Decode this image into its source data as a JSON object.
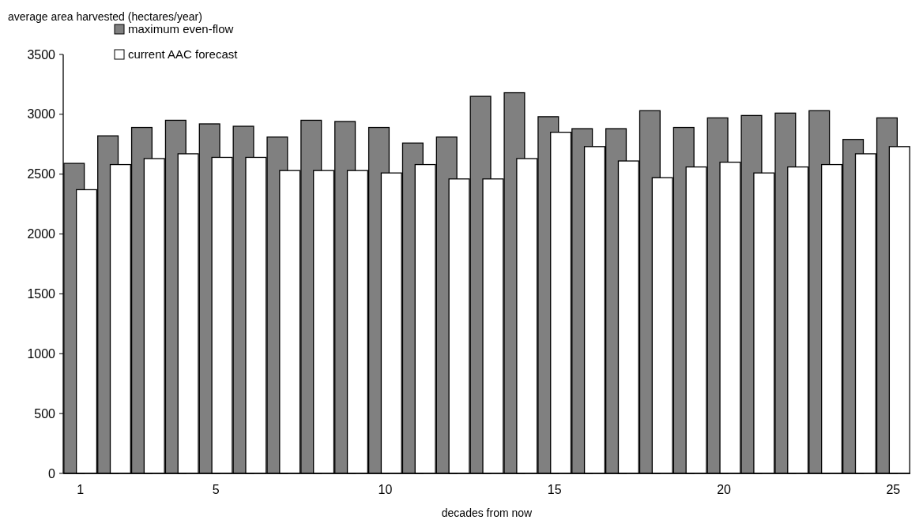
{
  "chart_data": {
    "type": "bar",
    "ylabel": "average area harvested (hectares/year)",
    "xlabel": "decades from now",
    "categories": [
      "1",
      null,
      null,
      null,
      "5",
      null,
      null,
      null,
      null,
      "10",
      null,
      null,
      null,
      null,
      "15",
      null,
      null,
      null,
      null,
      "20",
      null,
      null,
      null,
      null,
      "25"
    ],
    "series": [
      {
        "name": "maximum even-flow",
        "color": "#808080",
        "values": [
          2590,
          2820,
          2890,
          2950,
          2920,
          2900,
          2810,
          2950,
          2940,
          2890,
          2760,
          2810,
          3150,
          3180,
          2980,
          2880,
          2880,
          3030,
          2890,
          2970,
          2990,
          3010,
          3030,
          2790,
          2970
        ]
      },
      {
        "name": "current AAC forecast",
        "color": "#ffffff",
        "values": [
          2370,
          2580,
          2630,
          2670,
          2640,
          2640,
          2530,
          2530,
          2530,
          2510,
          2580,
          2460,
          2460,
          2630,
          2850,
          2730,
          2610,
          2470,
          2560,
          2600,
          2510,
          2560,
          2580,
          2670,
          2730
        ]
      }
    ],
    "ylim": [
      0,
      3500
    ],
    "yticks": [
      0,
      500,
      1000,
      1500,
      2000,
      2500,
      3000,
      3500
    ],
    "grid": false,
    "legend": "top left"
  }
}
